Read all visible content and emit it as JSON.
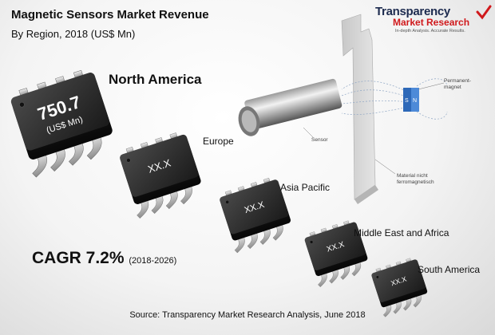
{
  "header": {
    "title": "Magnetic Sensors Market Revenue",
    "subtitle": "By Region, 2018 (US$ Mn)"
  },
  "logo": {
    "line1": "Transparency",
    "line2": "Market Research",
    "tagline": "In-depth Analysis. Accurate Results."
  },
  "illustration": {
    "sensor_label": "Sensor",
    "magnet_label_1": "Permanent-",
    "magnet_label_2": "magnet",
    "material_label_1": "Material nicht",
    "material_label_2": "ferromagnetisch",
    "magnet_letters": [
      "S",
      "N"
    ]
  },
  "chart_data": {
    "type": "bar",
    "title": "Magnetic Sensors Market Revenue",
    "subtitle": "By Region, 2018 (US$ Mn)",
    "categories": [
      "North America",
      "Europe",
      "Asia Pacific",
      "Middle East and Africa",
      "South America"
    ],
    "value_labels": [
      "750.7",
      "XX.X",
      "XX.X",
      "XX.X",
      "XX.X"
    ],
    "unit_label": "(US$ Mn)",
    "values": [
      750.7,
      null,
      null,
      null,
      null
    ]
  },
  "cagr": {
    "label": "CAGR 7.2%",
    "period": "(2018-2026)"
  },
  "source": "Source: Transparency Market Research Analysis, June 2018"
}
